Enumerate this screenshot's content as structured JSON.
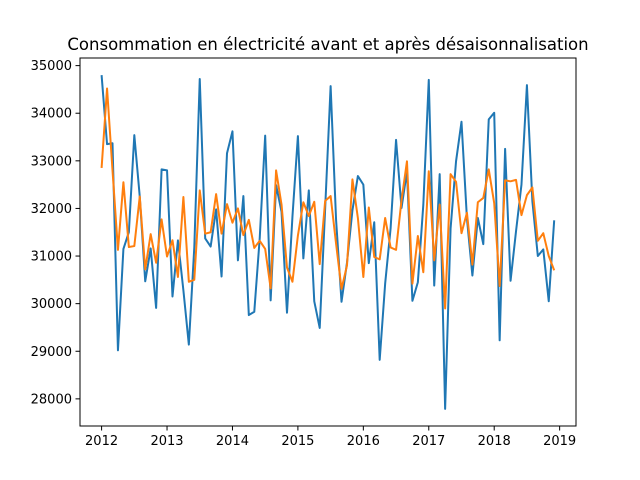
{
  "chart_data": {
    "type": "line",
    "title": "Consommation en électricité avant et après désaisonnalisation",
    "xlabel": "",
    "ylabel": "",
    "xlim": [
      2011.67,
      2019.25
    ],
    "ylim": [
      27430,
      35160
    ],
    "grid": false,
    "x_ticks": [
      2012,
      2013,
      2014,
      2015,
      2016,
      2017,
      2018,
      2019
    ],
    "x_tick_labels": [
      "2012",
      "2013",
      "2014",
      "2015",
      "2016",
      "2017",
      "2018",
      "2019"
    ],
    "y_ticks": [
      28000,
      29000,
      30000,
      31000,
      32000,
      33000,
      34000,
      35000
    ],
    "y_tick_labels": [
      "28000",
      "29000",
      "30000",
      "31000",
      "32000",
      "33000",
      "34000",
      "35000"
    ],
    "x_start": 2012,
    "x_step_months": 1,
    "series": [
      {
        "color": "#1f77b4",
        "values": [
          34800,
          33350,
          33370,
          29020,
          31150,
          31500,
          33540,
          32250,
          30470,
          31160,
          29910,
          32820,
          32800,
          30150,
          31330,
          30280,
          29140,
          31180,
          34720,
          31370,
          31200,
          31980,
          30570,
          33160,
          33620,
          30910,
          32260,
          29760,
          29830,
          31380,
          33530,
          30070,
          32490,
          31930,
          29810,
          31830,
          33520,
          30950,
          32380,
          30050,
          29490,
          32000,
          34570,
          31760,
          30040,
          30860,
          31960,
          32680,
          32500,
          30850,
          31710,
          28820,
          30420,
          31580,
          33440,
          32010,
          32780,
          30060,
          30450,
          32080,
          34700,
          30380,
          32720,
          27790,
          31580,
          32990,
          33820,
          31790,
          30590,
          31800,
          31250,
          33870,
          34010,
          29230,
          33250,
          30480,
          31520,
          32500,
          34590,
          32150,
          31000,
          31140,
          30050,
          31750
        ],
        "markers": false
      },
      {
        "color": "#ff7f0e",
        "values": [
          32850,
          34520,
          32800,
          31130,
          32550,
          31190,
          31210,
          32250,
          30720,
          31460,
          30860,
          31770,
          30990,
          31330,
          30560,
          32240,
          30460,
          30500,
          32380,
          31470,
          31500,
          32300,
          31470,
          32090,
          31700,
          32000,
          31440,
          31760,
          31170,
          31320,
          31150,
          30320,
          32800,
          32080,
          30760,
          30460,
          31430,
          32130,
          31840,
          32140,
          30830,
          32160,
          32260,
          31260,
          30310,
          30800,
          32610,
          31800,
          30560,
          32020,
          30980,
          30930,
          31800,
          31180,
          31130,
          32170,
          32990,
          30420,
          31420,
          30660,
          32780,
          30910,
          32080,
          29900,
          32720,
          32560,
          31480,
          31910,
          30820,
          32130,
          32220,
          32820,
          32110,
          30370,
          32590,
          32570,
          32600,
          31860,
          32280,
          32440,
          31320,
          31480,
          31000,
          30700
        ],
        "markers": false
      }
    ]
  }
}
